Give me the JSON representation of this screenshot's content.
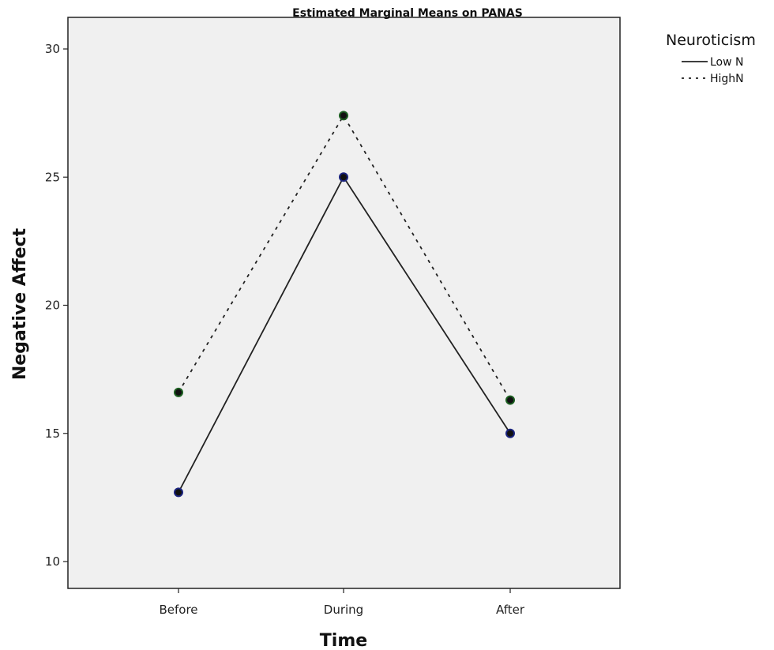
{
  "chart_data": {
    "type": "line",
    "title": "Estimated Marginal Means on PANAS",
    "xlabel": "Time",
    "ylabel": "Negative Affect",
    "categories": [
      "Before",
      "During",
      "After"
    ],
    "ylim": [
      9,
      31
    ],
    "yticks": [
      10,
      15,
      20,
      25,
      30
    ],
    "grid": false,
    "legend": {
      "title": "Neuroticism",
      "position": "outside-right"
    },
    "series": [
      {
        "name": "Low N",
        "values": [
          12.7,
          25.0,
          15.0
        ],
        "line_style": "solid",
        "marker_color": "#1a237e"
      },
      {
        "name": "HighN",
        "values": [
          16.6,
          27.4,
          16.3
        ],
        "line_style": "dotted",
        "marker_color": "#1b5e20"
      }
    ]
  }
}
